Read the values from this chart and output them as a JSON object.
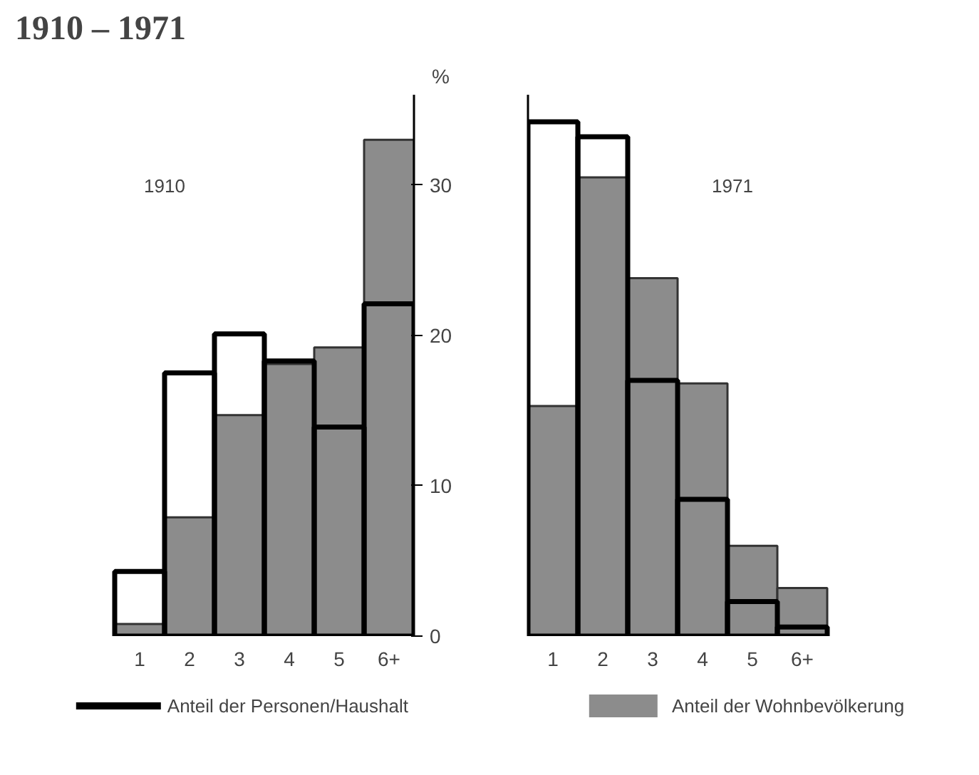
{
  "chart_data": [
    {
      "type": "bar",
      "title": "1910 – 1971",
      "subtitle": "1910",
      "ylabel": "%",
      "categories": [
        "1",
        "2",
        "3",
        "4",
        "5",
        "6+"
      ],
      "ylim": [
        0,
        36
      ],
      "yticks": [
        0,
        10,
        20,
        30
      ],
      "grid": false,
      "legend": "bottom",
      "series": [
        {
          "name": "Anteil der Wohnbevölkerung",
          "color": "#8c8c8c",
          "values": [
            0.8,
            7.9,
            14.7,
            18.1,
            19.2,
            33.0
          ]
        },
        {
          "name": "Anteil der Personen/Haushalt",
          "color": "#000000",
          "values": [
            4.3,
            17.5,
            20.1,
            18.3,
            13.9,
            22.1
          ]
        }
      ]
    },
    {
      "type": "bar",
      "subtitle": "1971",
      "categories": [
        "1",
        "2",
        "3",
        "4",
        "5",
        "6+"
      ],
      "ylim": [
        0,
        36
      ],
      "yticks": [
        0,
        10,
        20,
        30
      ],
      "grid": false,
      "tick_labels": "x",
      "series": [
        {
          "color": "#8c8c8c",
          "values": [
            15.3,
            30.5,
            23.8,
            16.8,
            6.0,
            3.2
          ]
        },
        {
          "color": "#000000",
          "values": [
            34.2,
            33.2,
            17.0,
            9.1,
            2.3,
            0.6
          ]
        }
      ]
    }
  ]
}
